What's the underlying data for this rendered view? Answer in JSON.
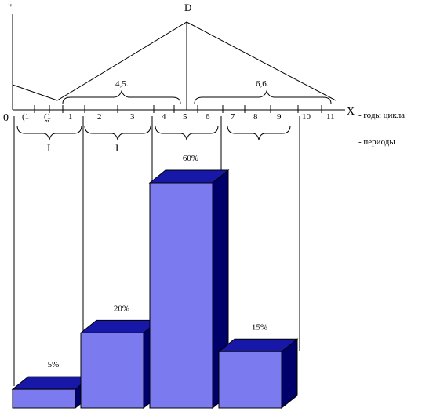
{
  "chart_data": {
    "type": "bar",
    "style": "3d-bar with cycle diagram above",
    "colors": {
      "bar_front": "#7B7BEF",
      "bar_top": "#1818A8",
      "bar_side": "#00006A",
      "line": "#000000"
    },
    "categories": [
      "",
      "",
      "",
      ""
    ],
    "values": [
      5,
      20,
      60,
      15
    ],
    "data_labels": [
      "5%",
      "20%",
      "60%",
      "15%"
    ],
    "ylim": [
      0,
      60
    ],
    "diagram": {
      "origin_label": "0",
      "peak_label": "D",
      "y_axis_label": "\"",
      "x_axis_label": "X",
      "x_axis_legend": "- годы цикла",
      "period_legend": "- периоды",
      "tick_labels": [
        "(1",
        "(1",
        "1",
        "2",
        "3",
        "4",
        "5",
        "6",
        "7",
        "8",
        "9",
        "10",
        "11"
      ],
      "tick_positions": [
        -2,
        -1.4,
        0,
        1,
        2,
        3,
        4,
        5,
        6,
        7,
        8,
        9,
        10
      ],
      "x_range": [
        -2.5,
        10.5
      ],
      "peak_position": 4,
      "span_labels": [
        "4,5.",
        "6,6."
      ],
      "period_labels": [
        "I",
        "I"
      ],
      "bracket_mark": "\""
    }
  }
}
